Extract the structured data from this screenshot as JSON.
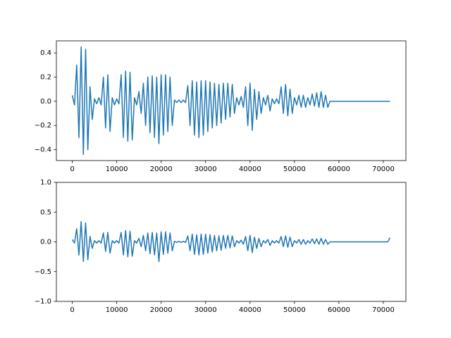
{
  "chart_data": [
    {
      "type": "line",
      "color": "#1f77b4",
      "x": [
        0,
        500,
        1000,
        1500,
        2000,
        2500,
        3000,
        3500,
        4000,
        4500,
        5000,
        5500,
        6000,
        6500,
        7000,
        7500,
        8000,
        8500,
        9000,
        9500,
        10000,
        10500,
        11000,
        11500,
        12000,
        12500,
        13000,
        13500,
        14000,
        14500,
        15000,
        15500,
        16000,
        16500,
        17000,
        17500,
        18000,
        18500,
        19000,
        19500,
        20000,
        20500,
        21000,
        21500,
        22000,
        22500,
        23000,
        23500,
        24000,
        24500,
        25000,
        25500,
        26000,
        26500,
        27000,
        27500,
        28000,
        28500,
        29000,
        29500,
        30000,
        30500,
        31000,
        31500,
        32000,
        32500,
        33000,
        33500,
        34000,
        34500,
        35000,
        35500,
        36000,
        36500,
        37000,
        37500,
        38000,
        38500,
        39000,
        39500,
        40000,
        40500,
        41000,
        41500,
        42000,
        42500,
        43000,
        43500,
        44000,
        44500,
        45000,
        45500,
        46000,
        46500,
        47000,
        47500,
        48000,
        48500,
        49000,
        49500,
        50000,
        50500,
        51000,
        51500,
        52000,
        52500,
        53000,
        53500,
        54000,
        54500,
        55000,
        55500,
        56000,
        56500,
        57000,
        57500,
        58000,
        58500,
        59000,
        59500,
        60000,
        60500,
        61000,
        61500,
        62000,
        62500,
        63000,
        63500,
        64000,
        64500,
        65000,
        65500,
        66000,
        66500,
        67000,
        67500,
        68000,
        68500,
        69000,
        69500,
        70000,
        70500,
        71000,
        71500
      ],
      "values": [
        0.05,
        -0.03,
        0.3,
        -0.3,
        0.45,
        -0.44,
        0.43,
        -0.4,
        0.12,
        -0.15,
        0.02,
        -0.02,
        0.03,
        -0.03,
        0.2,
        -0.22,
        0.22,
        -0.25,
        0.03,
        -0.03,
        0.02,
        -0.02,
        0.22,
        -0.3,
        0.25,
        -0.33,
        0.24,
        -0.32,
        0.03,
        -0.03,
        0.08,
        -0.1,
        0.15,
        -0.2,
        0.2,
        -0.26,
        0.21,
        -0.3,
        0.2,
        -0.35,
        0.22,
        -0.28,
        0.22,
        -0.25,
        0.2,
        -0.2,
        0.01,
        -0.01,
        0.01,
        -0.01,
        0.01,
        -0.01,
        0.13,
        -0.2,
        0.17,
        -0.28,
        0.16,
        -0.3,
        0.17,
        -0.28,
        0.17,
        -0.25,
        0.16,
        -0.22,
        0.15,
        -0.2,
        0.14,
        -0.18,
        0.15,
        -0.15,
        0.15,
        -0.13,
        0.14,
        -0.1,
        0.03,
        -0.03,
        0.04,
        -0.05,
        0.12,
        -0.2,
        0.15,
        -0.24,
        0.1,
        -0.15,
        0.08,
        -0.1,
        0.03,
        -0.03,
        0.05,
        -0.08,
        0.02,
        -0.02,
        0.02,
        -0.02,
        0.12,
        -0.1,
        0.14,
        -0.12,
        0.1,
        -0.1,
        0.03,
        -0.03,
        0.05,
        -0.05,
        0.05,
        -0.05,
        0.03,
        -0.03,
        0.06,
        -0.04,
        0.07,
        -0.05,
        0.08,
        -0.05,
        0.05,
        -0.05,
        0,
        0,
        0,
        0,
        0,
        0,
        0,
        0,
        0,
        0,
        0,
        0,
        0,
        0,
        0,
        0,
        0,
        0,
        0,
        0,
        0,
        0,
        0,
        0,
        0,
        0,
        0,
        0
      ],
      "xlim": [
        -3575,
        75075
      ],
      "xticks": [
        0,
        10000,
        20000,
        30000,
        40000,
        50000,
        60000,
        70000
      ],
      "ylim": [
        -0.49,
        0.5
      ],
      "yticks": [
        {
          "value": -0.4,
          "label": "−0.4"
        },
        {
          "value": -0.2,
          "label": "−0.2"
        },
        {
          "value": 0,
          "label": "0.0"
        },
        0.2,
        0.4
      ]
    },
    {
      "type": "line",
      "color": "#1f77b4",
      "x": [
        0,
        500,
        1000,
        1500,
        2000,
        2500,
        3000,
        3500,
        4000,
        4500,
        5000,
        5500,
        6000,
        6500,
        7000,
        7500,
        8000,
        8500,
        9000,
        9500,
        10000,
        10500,
        11000,
        11500,
        12000,
        12500,
        13000,
        13500,
        14000,
        14500,
        15000,
        15500,
        16000,
        16500,
        17000,
        17500,
        18000,
        18500,
        19000,
        19500,
        20000,
        20500,
        21000,
        21500,
        22000,
        22500,
        23000,
        23500,
        24000,
        24500,
        25000,
        25500,
        26000,
        26500,
        27000,
        27500,
        28000,
        28500,
        29000,
        29500,
        30000,
        30500,
        31000,
        31500,
        32000,
        32500,
        33000,
        33500,
        34000,
        34500,
        35000,
        35500,
        36000,
        36500,
        37000,
        37500,
        38000,
        38500,
        39000,
        39500,
        40000,
        40500,
        41000,
        41500,
        42000,
        42500,
        43000,
        43500,
        44000,
        44500,
        45000,
        45500,
        46000,
        46500,
        47000,
        47500,
        48000,
        48500,
        49000,
        49500,
        50000,
        50500,
        51000,
        51500,
        52000,
        52500,
        53000,
        53500,
        54000,
        54500,
        55000,
        55500,
        56000,
        56500,
        57000,
        57500,
        58000,
        58500,
        59000,
        59500,
        60000,
        60500,
        61000,
        61500,
        62000,
        62500,
        63000,
        63500,
        64000,
        64500,
        65000,
        65500,
        66000,
        66500,
        67000,
        67500,
        68000,
        68500,
        69000,
        69500,
        70000,
        70500,
        71000,
        71500
      ],
      "values": [
        0.04,
        -0.02,
        0.22,
        -0.22,
        0.34,
        -0.33,
        0.32,
        -0.3,
        0.09,
        -0.11,
        0.02,
        -0.02,
        0.02,
        -0.02,
        0.15,
        -0.16,
        0.16,
        -0.19,
        0.02,
        -0.02,
        0.02,
        -0.02,
        0.16,
        -0.22,
        0.19,
        -0.25,
        0.18,
        -0.24,
        0.02,
        -0.02,
        0.06,
        -0.08,
        0.11,
        -0.15,
        0.15,
        -0.2,
        0.16,
        -0.22,
        0.15,
        -0.33,
        0.17,
        -0.21,
        0.17,
        -0.19,
        0.15,
        -0.15,
        0.01,
        -0.01,
        0.01,
        -0.01,
        0.01,
        -0.01,
        0.1,
        -0.15,
        0.13,
        -0.21,
        0.12,
        -0.22,
        0.13,
        -0.21,
        0.13,
        -0.19,
        0.12,
        -0.17,
        0.11,
        -0.15,
        0.1,
        -0.14,
        0.11,
        -0.11,
        0.11,
        -0.1,
        0.1,
        -0.08,
        0.02,
        -0.02,
        0.03,
        -0.04,
        0.09,
        -0.15,
        0.11,
        -0.18,
        0.08,
        -0.11,
        0.06,
        -0.08,
        0.02,
        -0.02,
        0.04,
        -0.06,
        0.02,
        -0.02,
        0.02,
        -0.02,
        0.09,
        -0.08,
        0.1,
        -0.09,
        0.08,
        -0.08,
        0.02,
        -0.02,
        0.04,
        -0.04,
        0.04,
        -0.04,
        0.02,
        -0.02,
        0.05,
        -0.03,
        0.05,
        -0.04,
        0.06,
        -0.04,
        0.04,
        -0.04,
        0,
        0,
        0,
        0,
        0,
        0,
        0,
        0,
        0,
        0,
        0,
        0,
        0,
        0,
        0,
        0,
        0,
        0,
        0,
        0,
        0,
        0,
        0,
        0,
        0,
        0,
        0,
        0.07
      ],
      "xlim": [
        -3575,
        75075
      ],
      "xticks": [
        0,
        10000,
        20000,
        30000,
        40000,
        50000,
        60000,
        70000
      ],
      "ylim": [
        -1,
        1
      ],
      "yticks": [
        {
          "value": -1,
          "label": "−1.0"
        },
        {
          "value": -0.5,
          "label": "−0.5"
        },
        {
          "value": 0,
          "label": "0.0"
        },
        0.5,
        {
          "value": 1,
          "label": "1.0"
        }
      ]
    }
  ]
}
